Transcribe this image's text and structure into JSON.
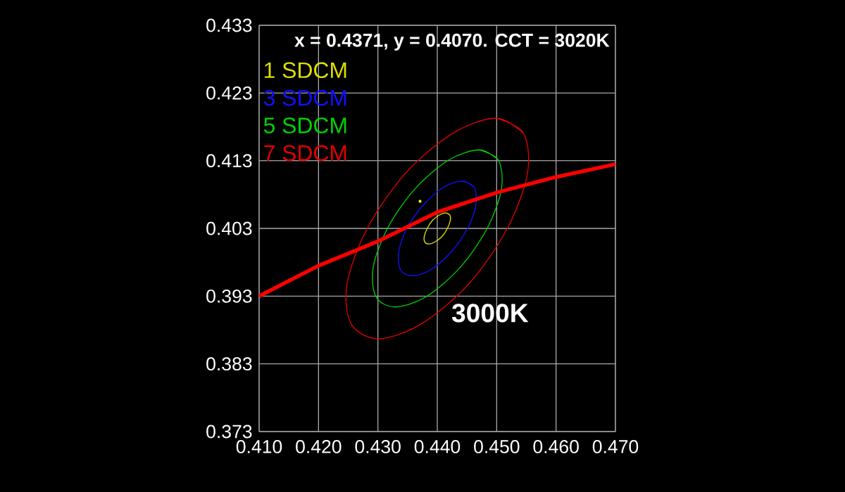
{
  "chart_data": {
    "type": "line",
    "annotations": [
      "x = 0.4371, y = 0.4070. CCT = 3020K",
      "3000K"
    ],
    "xlim": [
      0.41,
      0.47
    ],
    "ylim": [
      0.373,
      0.433
    ],
    "xticks": [
      {
        "value": 0.41,
        "label": "0.410"
      },
      {
        "value": 0.42,
        "label": "0.420"
      },
      {
        "value": 0.43,
        "label": "0.430"
      },
      {
        "value": 0.44,
        "label": "0.440"
      },
      {
        "value": 0.45,
        "label": "0.450"
      },
      {
        "value": 0.46,
        "label": "0.460"
      },
      {
        "value": 0.47,
        "label": "0.470"
      }
    ],
    "yticks": [
      0.373,
      0.383,
      0.393,
      0.403,
      0.413,
      0.423,
      0.433
    ],
    "grid": true,
    "marker": "none",
    "series": [
      {
        "name": "1 SDCM",
        "color": "#e0e000",
        "x": [
          0.4414,
          0.4421,
          0.4422,
          0.4417,
          0.4408,
          0.4396,
          0.4386,
          0.4379,
          0.4378,
          0.4383,
          0.4392,
          0.4404
        ],
        "values": [
          0.4053,
          0.405,
          0.4042,
          0.403,
          0.4018,
          0.401,
          0.4007,
          0.401,
          0.4018,
          0.403,
          0.4042,
          0.405
        ]
      },
      {
        "name": "3 SDCM",
        "color": "#1010ff",
        "x": [
          0.4442,
          0.4462,
          0.4465,
          0.4451,
          0.4423,
          0.4389,
          0.4358,
          0.4338,
          0.4335,
          0.4349,
          0.4377,
          0.4411
        ],
        "values": [
          0.41,
          0.4091,
          0.4065,
          0.403,
          0.3995,
          0.3969,
          0.396,
          0.3969,
          0.3995,
          0.403,
          0.4065,
          0.4091
        ]
      },
      {
        "name": "5 SDCM",
        "color": "#00d000",
        "x": [
          0.4471,
          0.4503,
          0.4508,
          0.4484,
          0.4438,
          0.4381,
          0.4329,
          0.4297,
          0.4292,
          0.4316,
          0.4362,
          0.4419
        ],
        "values": [
          0.4146,
          0.4131,
          0.4088,
          0.403,
          0.3972,
          0.3929,
          0.3914,
          0.3929,
          0.3972,
          0.403,
          0.4088,
          0.4131
        ]
      },
      {
        "name": "7 SDCM",
        "color": "#e00000",
        "x": [
          0.4499,
          0.4545,
          0.4552,
          0.4518,
          0.4453,
          0.4373,
          0.4301,
          0.4255,
          0.4248,
          0.4282,
          0.4347,
          0.4427
        ],
        "values": [
          0.4193,
          0.4171,
          0.4112,
          0.403,
          0.3948,
          0.3889,
          0.3867,
          0.3889,
          0.3948,
          0.403,
          0.4112,
          0.4171
        ]
      },
      {
        "color": "#ff0000",
        "x": [
          0.41,
          0.42,
          0.43,
          0.44,
          0.45,
          0.46,
          0.47
        ],
        "values": [
          0.393,
          0.3975,
          0.4011,
          0.4054,
          0.4083,
          0.4106,
          0.4125
        ]
      },
      {
        "type": "scatter",
        "color": "#ffff00",
        "x": [
          0.4371
        ],
        "values": [
          0.407
        ]
      }
    ]
  }
}
